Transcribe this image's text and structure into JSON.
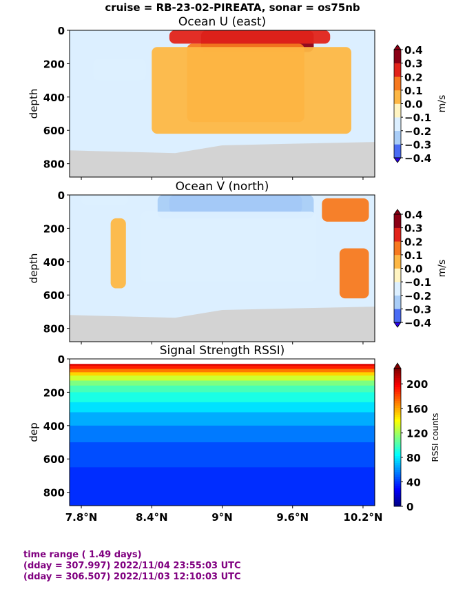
{
  "suptitle": "cruise = RB-23-02-PIREATA,  sonar = os75nb",
  "chart_data": [
    {
      "type": "heatmap",
      "title": "Ocean U (east)",
      "ylabel": "depth",
      "ylim": [
        880,
        0
      ],
      "y_ticks": [
        0,
        200,
        400,
        600,
        800
      ],
      "xlim": [
        7.7,
        10.3
      ],
      "x_ticks": [
        7.8,
        8.4,
        9.0,
        9.6,
        10.2
      ],
      "x_tick_labels": [
        "7.8°N",
        "8.4°N",
        "9°N",
        "9.6°N",
        "10.2°N"
      ],
      "show_x_tick_labels": false,
      "colorbar": {
        "label": "m/s",
        "levels": [
          -0.4,
          -0.3,
          -0.2,
          -0.1,
          0.0,
          0.1,
          0.2,
          0.3,
          0.4
        ],
        "tick_labels": [
          "−0.4",
          "−0.3",
          "−0.2",
          "−0.1",
          "0.0",
          "0.1",
          "0.2",
          "0.3",
          "0.4"
        ],
        "colors": [
          "#2a00e6",
          "#4a6cf4",
          "#a9cdf7",
          "#dcefff",
          "#fff4c2",
          "#fdb745",
          "#f7791f",
          "#e2231a",
          "#8b0015"
        ],
        "extend": "both"
      },
      "structure": {
        "background": "#dcefff",
        "bottom_mask": "#d3d3d3",
        "features": [
          {
            "value": 0.4,
            "lat": [
              8.97,
              9.68
            ],
            "depth": [
              0,
              80
            ]
          },
          {
            "value": 0.3,
            "lat": [
              8.82,
              9.78
            ],
            "depth": [
              0,
              130
            ]
          },
          {
            "value": 0.2,
            "lat": [
              8.55,
              9.92
            ],
            "depth": [
              0,
              80
            ]
          },
          {
            "value": 0.1,
            "lat": [
              8.7,
              9.7
            ],
            "depth": [
              80,
              550
            ]
          },
          {
            "value": 0.05,
            "lat": [
              8.4,
              10.1
            ],
            "depth": [
              100,
              620
            ]
          },
          {
            "value": -0.15,
            "lat": [
              7.9,
              8.35
            ],
            "depth": [
              170,
              300
            ]
          }
        ]
      }
    },
    {
      "type": "heatmap",
      "title": "Ocean V (north)",
      "ylabel": "depth",
      "ylim": [
        880,
        0
      ],
      "y_ticks": [
        0,
        200,
        400,
        600,
        800
      ],
      "xlim": [
        7.7,
        10.3
      ],
      "x_ticks": [
        7.8,
        8.4,
        9.0,
        9.6,
        10.2
      ],
      "x_tick_labels": [
        "7.8°N",
        "8.4°N",
        "9°N",
        "9.6°N",
        "10.2°N"
      ],
      "show_x_tick_labels": false,
      "colorbar": {
        "label": "m/s",
        "levels": [
          -0.4,
          -0.3,
          -0.2,
          -0.1,
          0.0,
          0.1,
          0.2,
          0.3,
          0.4
        ],
        "tick_labels": [
          "−0.4",
          "−0.3",
          "−0.2",
          "−0.1",
          "0.0",
          "0.1",
          "0.2",
          "0.3",
          "0.4"
        ],
        "colors": [
          "#2a00e6",
          "#4a6cf4",
          "#a9cdf7",
          "#dcefff",
          "#fff4c2",
          "#fdb745",
          "#f7791f",
          "#e2231a",
          "#8b0015"
        ],
        "extend": "both"
      },
      "structure": {
        "background": "#dcefff",
        "bottom_mask": "#d3d3d3",
        "features": [
          {
            "value": -0.4,
            "lat": [
              8.55,
              9.68
            ],
            "depth": [
              0,
              110
            ]
          },
          {
            "value": -0.3,
            "lat": [
              8.45,
              9.78
            ],
            "depth": [
              0,
              140
            ]
          },
          {
            "value": -0.2,
            "lat": [
              7.8,
              8.2
            ],
            "depth": [
              0,
              60
            ]
          },
          {
            "value": -0.15,
            "lat": [
              8.3,
              9.8
            ],
            "depth": [
              100,
              520
            ]
          },
          {
            "value": 0.1,
            "lat": [
              9.85,
              10.25
            ],
            "depth": [
              20,
              160
            ]
          },
          {
            "value": 0.1,
            "lat": [
              10.0,
              10.25
            ],
            "depth": [
              320,
              620
            ]
          },
          {
            "value": 0.05,
            "lat": [
              8.05,
              8.18
            ],
            "depth": [
              140,
              560
            ]
          }
        ]
      }
    },
    {
      "type": "heatmap",
      "title": "Signal Strength RSSI)",
      "ylabel": "dep",
      "ylim": [
        880,
        0
      ],
      "y_ticks": [
        0,
        200,
        400,
        600,
        800
      ],
      "xlim": [
        7.7,
        10.3
      ],
      "x_ticks": [
        7.8,
        8.4,
        9.0,
        9.6,
        10.2
      ],
      "x_tick_labels": [
        "7.8°N",
        "8.4°N",
        "9°N",
        "9.6°N",
        "10.2°N"
      ],
      "show_x_tick_labels": true,
      "colorbar": {
        "label": "RSSI counts",
        "ticks": [
          0,
          40,
          80,
          120,
          160,
          200
        ],
        "tick_labels": [
          "0",
          "40",
          "80",
          "120",
          "160",
          "200"
        ],
        "range": [
          0,
          225
        ],
        "colormap": "jet",
        "extend": "max"
      },
      "profile": {
        "depth": [
          30,
          40,
          60,
          80,
          100,
          130,
          160,
          200,
          260,
          320,
          400,
          500,
          650,
          880
        ],
        "rssi": [
          205,
          190,
          170,
          150,
          130,
          112,
          100,
          90,
          78,
          66,
          55,
          45,
          38,
          30
        ]
      }
    }
  ],
  "footer": {
    "line1": "time range ( 1.49 days)",
    "line2": "(dday = 307.997) 2022/11/04 23:55:03 UTC",
    "line3": "(dday = 306.507) 2022/11/03 12:10:03 UTC"
  }
}
